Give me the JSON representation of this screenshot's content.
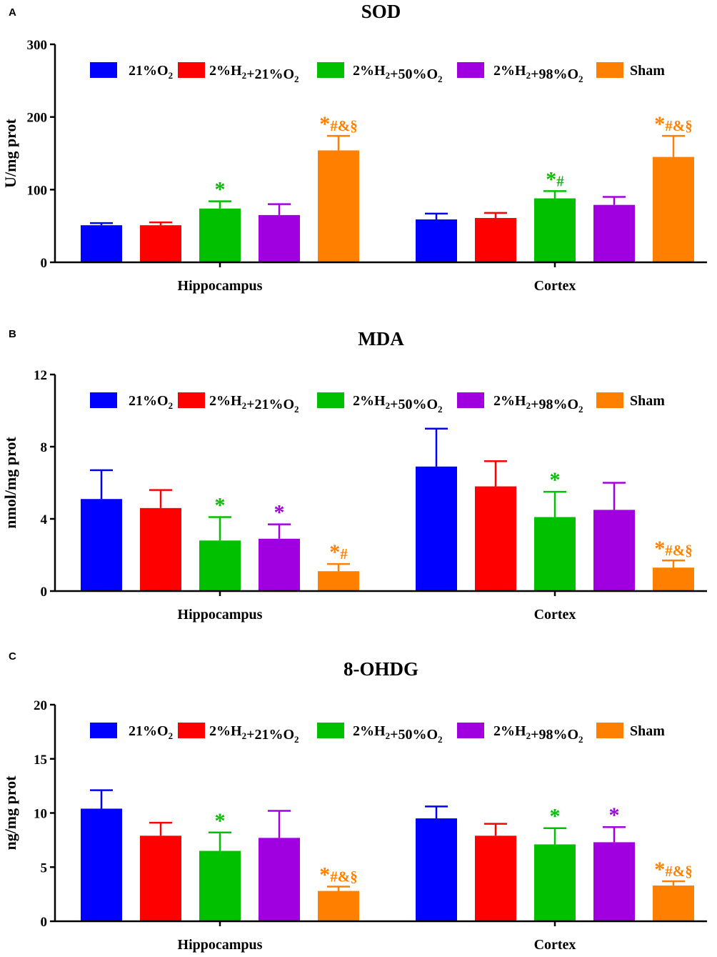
{
  "chart_data": [
    {
      "panel": "A",
      "type": "bar",
      "title": "SOD",
      "ylabel": "U/mg prot",
      "xlabel": "",
      "ylim": [
        0,
        300
      ],
      "yticks": [
        0,
        100,
        200,
        300
      ],
      "categories": [
        "Hippocampus",
        "Cortex"
      ],
      "legend_position": "top",
      "series": [
        {
          "name": "21%O2",
          "color": "#0000ff",
          "values": [
            51,
            59
          ],
          "errors": [
            3,
            8
          ],
          "sig": [
            "",
            ""
          ]
        },
        {
          "name": "2%H2+21%O2",
          "color": "#ff0000",
          "values": [
            51,
            61
          ],
          "errors": [
            4,
            7
          ],
          "sig": [
            "",
            ""
          ]
        },
        {
          "name": "2%H2+50%O2",
          "color": "#00c000",
          "values": [
            74,
            88
          ],
          "errors": [
            10,
            10
          ],
          "sig": [
            "*",
            "*#"
          ]
        },
        {
          "name": "2%H2+98%O2",
          "color": "#a000e0",
          "values": [
            65,
            79
          ],
          "errors": [
            15,
            11
          ],
          "sig": [
            "",
            ""
          ]
        },
        {
          "name": "Sham",
          "color": "#ff8000",
          "values": [
            154,
            145
          ],
          "errors": [
            20,
            29
          ],
          "sig": [
            "*#&§",
            "*#&§"
          ]
        }
      ]
    },
    {
      "panel": "B",
      "type": "bar",
      "title": "MDA",
      "ylabel": "nmol/mg prot",
      "xlabel": "",
      "ylim": [
        0,
        12
      ],
      "yticks": [
        0,
        4,
        8,
        12
      ],
      "categories": [
        "Hippocampus",
        "Cortex"
      ],
      "legend_position": "top",
      "series": [
        {
          "name": "21%O2",
          "color": "#0000ff",
          "values": [
            5.1,
            6.9
          ],
          "errors": [
            1.6,
            2.1
          ],
          "sig": [
            "",
            ""
          ]
        },
        {
          "name": "2%H2+21%O2",
          "color": "#ff0000",
          "values": [
            4.6,
            5.8
          ],
          "errors": [
            1.0,
            1.4
          ],
          "sig": [
            "",
            ""
          ]
        },
        {
          "name": "2%H2+50%O2",
          "color": "#00c000",
          "values": [
            2.8,
            4.1
          ],
          "errors": [
            1.3,
            1.4
          ],
          "sig": [
            "*",
            "*"
          ]
        },
        {
          "name": "2%H2+98%O2",
          "color": "#a000e0",
          "values": [
            2.9,
            4.5
          ],
          "errors": [
            0.8,
            1.5
          ],
          "sig": [
            "*",
            ""
          ]
        },
        {
          "name": "Sham",
          "color": "#ff8000",
          "values": [
            1.1,
            1.3
          ],
          "errors": [
            0.4,
            0.4
          ],
          "sig": [
            "*#",
            "*#&§"
          ]
        }
      ]
    },
    {
      "panel": "C",
      "type": "bar",
      "title": "8-OHDG",
      "ylabel": "ng/mg prot",
      "xlabel": "",
      "ylim": [
        0,
        20
      ],
      "yticks": [
        0,
        5,
        10,
        15,
        20
      ],
      "categories": [
        "Hippocampus",
        "Cortex"
      ],
      "legend_position": "top",
      "series": [
        {
          "name": "21%O2",
          "color": "#0000ff",
          "values": [
            10.4,
            9.5
          ],
          "errors": [
            1.7,
            1.1
          ],
          "sig": [
            "",
            ""
          ]
        },
        {
          "name": "2%H2+21%O2",
          "color": "#ff0000",
          "values": [
            7.9,
            7.9
          ],
          "errors": [
            1.2,
            1.1
          ],
          "sig": [
            "",
            ""
          ]
        },
        {
          "name": "2%H2+50%O2",
          "color": "#00c000",
          "values": [
            6.5,
            7.1
          ],
          "errors": [
            1.7,
            1.5
          ],
          "sig": [
            "*",
            "*"
          ]
        },
        {
          "name": "2%H2+98%O2",
          "color": "#a000e0",
          "values": [
            7.7,
            7.3
          ],
          "errors": [
            2.5,
            1.4
          ],
          "sig": [
            "",
            "*"
          ]
        },
        {
          "name": "Sham",
          "color": "#ff8000",
          "values": [
            2.8,
            3.3
          ],
          "errors": [
            0.4,
            0.4
          ],
          "sig": [
            "*#&§",
            "*#&§"
          ]
        }
      ]
    }
  ]
}
